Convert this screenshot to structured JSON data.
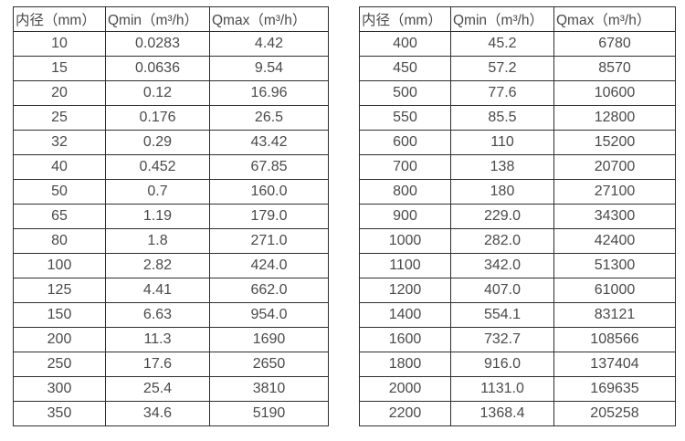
{
  "colors": {
    "background": "#ffffff",
    "border": "#2e2e2e",
    "text": "#4a4a4a"
  },
  "chart_data": [
    {
      "type": "table",
      "name": "flow-rate-table-small-diameters",
      "headers": [
        "内径（mm）",
        "Qmin（m³/h）",
        "Qmax（m³/h）"
      ],
      "rows": [
        [
          "10",
          "0.0283",
          "4.42"
        ],
        [
          "15",
          "0.0636",
          "9.54"
        ],
        [
          "20",
          "0.12",
          "16.96"
        ],
        [
          "25",
          "0.176",
          "26.5"
        ],
        [
          "32",
          "0.29",
          "43.42"
        ],
        [
          "40",
          "0.452",
          "67.85"
        ],
        [
          "50",
          "0.7",
          "160.0"
        ],
        [
          "65",
          "1.19",
          "179.0"
        ],
        [
          "80",
          "1.8",
          "271.0"
        ],
        [
          "100",
          "2.82",
          "424.0"
        ],
        [
          "125",
          "4.41",
          "662.0"
        ],
        [
          "150",
          "6.63",
          "954.0"
        ],
        [
          "200",
          "11.3",
          "1690"
        ],
        [
          "250",
          "17.6",
          "2650"
        ],
        [
          "300",
          "25.4",
          "3810"
        ],
        [
          "350",
          "34.6",
          "5190"
        ]
      ]
    },
    {
      "type": "table",
      "name": "flow-rate-table-large-diameters",
      "headers": [
        "内径（mm）",
        "Qmin（m³/h）",
        "Qmax（m³/h）"
      ],
      "rows": [
        [
          "400",
          "45.2",
          "6780"
        ],
        [
          "450",
          "57.2",
          "8570"
        ],
        [
          "500",
          "77.6",
          "10600"
        ],
        [
          "550",
          "85.5",
          "12800"
        ],
        [
          "600",
          "110",
          "15200"
        ],
        [
          "700",
          "138",
          "20700"
        ],
        [
          "800",
          "180",
          "27100"
        ],
        [
          "900",
          "229.0",
          "34300"
        ],
        [
          "1000",
          "282.0",
          "42400"
        ],
        [
          "1100",
          "342.0",
          "51300"
        ],
        [
          "1200",
          "407.0",
          "61000"
        ],
        [
          "1400",
          "554.1",
          "83121"
        ],
        [
          "1600",
          "732.7",
          "108566"
        ],
        [
          "1800",
          "916.0",
          "137404"
        ],
        [
          "2000",
          "1131.0",
          "169635"
        ],
        [
          "2200",
          "1368.4",
          "205258"
        ]
      ]
    }
  ]
}
